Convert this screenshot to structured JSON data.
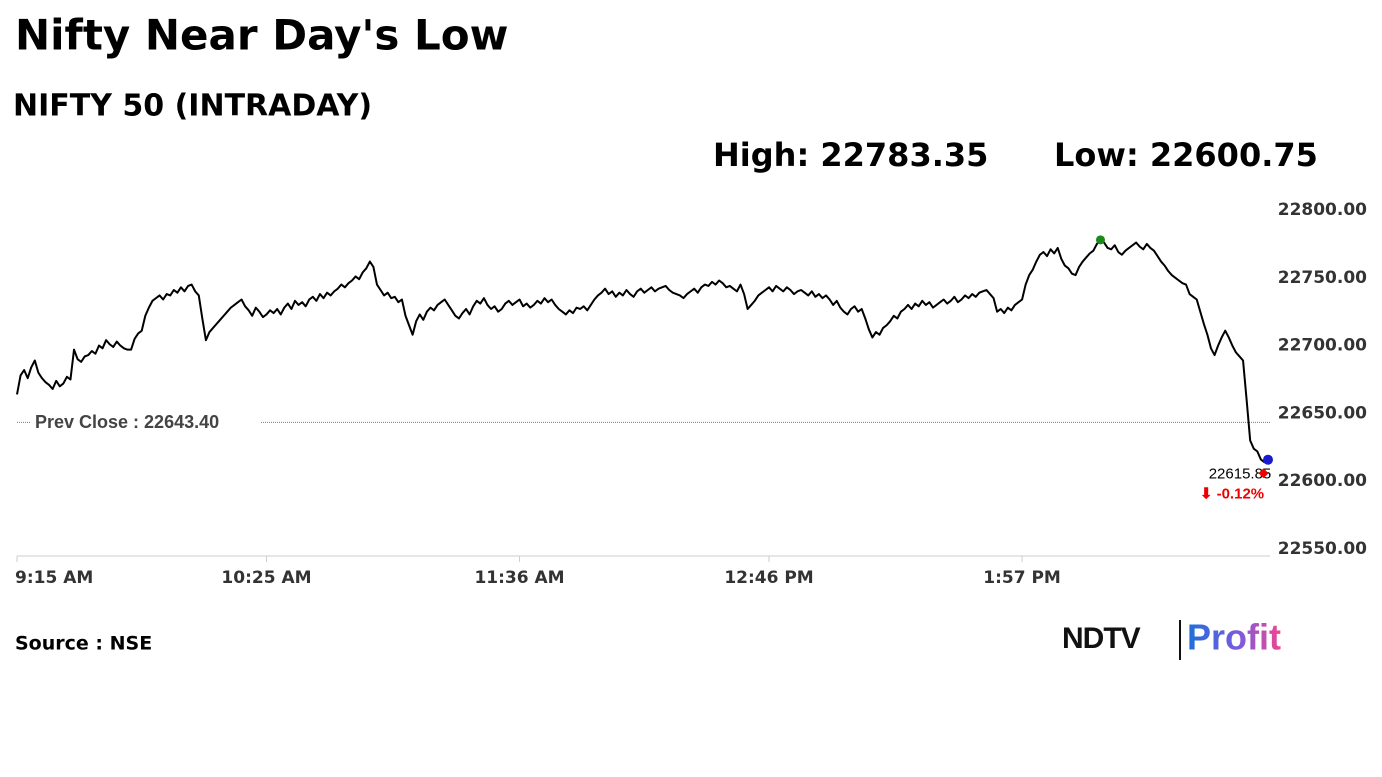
{
  "chart_data": {
    "type": "line",
    "title": "Nifty Near Day's Low",
    "subtitle": "NIFTY 50 (INTRADAY)",
    "high_label": "High: 22783.35",
    "low_label": "Low: 22600.75",
    "prev_close": 22643.4,
    "prev_close_label": "Prev Close : 22643.40",
    "change_label": "⬇ -0.12%",
    "source": "Source : NSE",
    "brand": {
      "ndtv": "NDTV",
      "profit": "Profit"
    },
    "color": "#000000",
    "ylim": [
      22550,
      22800
    ],
    "yticks": [
      {
        "value": 22550,
        "label": "22550.00"
      },
      {
        "value": 22600,
        "label": "22600.00"
      },
      {
        "value": 22650,
        "label": "22650.00"
      },
      {
        "value": 22700,
        "label": "22700.00"
      },
      {
        "value": 22750,
        "label": "22750.00"
      },
      {
        "value": 22800,
        "label": "22800.00"
      }
    ],
    "categories": [
      "9:15 AM",
      null,
      null,
      null,
      null,
      null,
      null,
      null,
      null,
      null,
      null,
      null,
      null,
      null,
      null,
      null,
      null,
      null,
      null,
      null,
      null,
      null,
      null,
      null,
      null,
      null,
      null,
      null,
      null,
      null,
      null,
      null,
      null,
      null,
      null,
      null,
      null,
      null,
      null,
      null,
      null,
      null,
      null,
      null,
      null,
      null,
      null,
      null,
      null,
      null,
      null,
      null,
      null,
      null,
      null,
      null,
      null,
      null,
      null,
      null,
      null,
      null,
      null,
      null,
      null,
      null,
      null,
      null,
      null,
      null,
      "10:25 AM",
      null,
      null,
      null,
      null,
      null,
      null,
      null,
      null,
      null,
      null,
      null,
      null,
      null,
      null,
      null,
      null,
      null,
      null,
      null,
      null,
      null,
      null,
      null,
      null,
      null,
      null,
      null,
      null,
      null,
      null,
      null,
      null,
      null,
      null,
      null,
      null,
      null,
      null,
      null,
      null,
      null,
      null,
      null,
      null,
      null,
      null,
      null,
      null,
      null,
      null,
      null,
      null,
      null,
      null,
      null,
      null,
      null,
      null,
      null,
      null,
      null,
      null,
      null,
      null,
      null,
      null,
      null,
      null,
      null,
      null,
      "11:36 AM",
      null,
      null,
      null,
      null,
      null,
      null,
      null,
      null,
      null,
      null,
      null,
      null,
      null,
      null,
      null,
      null,
      null,
      null,
      null,
      null,
      null,
      null,
      null,
      null,
      null,
      null,
      null,
      null,
      null,
      null,
      null,
      null,
      null,
      null,
      null,
      null,
      null,
      null,
      null,
      null,
      null,
      null,
      null,
      null,
      null,
      null,
      null,
      null,
      null,
      null,
      null,
      null,
      null,
      null,
      null,
      null,
      null,
      null,
      null,
      null,
      null,
      null,
      null,
      null,
      null,
      null,
      null,
      null,
      null,
      "12:46 PM",
      null,
      null,
      null,
      null,
      null,
      null,
      null,
      null,
      null,
      null,
      null,
      null,
      null,
      null,
      null,
      null,
      null,
      null,
      null,
      null,
      null,
      null,
      null,
      null,
      null,
      null,
      null,
      null,
      null,
      null,
      null,
      null,
      null,
      null,
      null,
      null,
      null,
      null,
      null,
      null,
      null,
      null,
      null,
      null,
      null,
      null,
      null,
      null,
      null,
      null,
      null,
      null,
      null,
      null,
      null,
      null,
      null,
      null,
      null,
      null,
      null,
      null,
      null,
      null,
      null,
      null,
      null,
      null,
      null,
      null,
      "1:57 PM",
      null,
      null,
      null,
      null,
      null,
      null,
      null,
      null,
      null,
      null,
      null,
      null,
      null,
      null,
      null,
      null,
      null,
      null,
      null,
      null,
      null,
      null,
      null,
      null,
      null,
      null,
      null,
      null,
      null,
      null,
      null,
      null,
      null,
      null,
      null,
      null,
      null,
      null,
      null,
      null,
      null,
      null,
      null,
      null,
      null,
      null,
      null,
      null,
      null,
      null,
      null,
      null,
      null,
      null,
      null,
      null,
      null,
      null,
      null,
      null,
      null,
      null,
      null,
      null,
      null,
      null,
      null,
      null,
      null
    ],
    "values": [
      22664,
      22678,
      22682,
      22676,
      22684,
      22689,
      22680,
      22676,
      22673,
      22671,
      22668,
      22674,
      22670,
      22672,
      22677,
      22675,
      22697,
      22690,
      22688,
      22692,
      22693,
      22696,
      22694,
      22700,
      22698,
      22704,
      22701,
      22699,
      22703,
      22700,
      22698,
      22697,
      22697,
      22705,
      22709,
      22711,
      22722,
      22728,
      22733,
      22735,
      22737,
      22734,
      22738,
      22737,
      22741,
      22739,
      22743,
      22740,
      22744,
      22745,
      22740,
      22737,
      22720,
      22704,
      22710,
      22713,
      22716,
      22719,
      22722,
      22725,
      22728,
      22730,
      22732,
      22734,
      22729,
      22726,
      22722,
      22728,
      22725,
      22721,
      22723,
      22726,
      22724,
      22727,
      22723,
      22728,
      22731,
      22727,
      22733,
      22730,
      22732,
      22729,
      22734,
      22736,
      22733,
      22738,
      22735,
      22739,
      22737,
      22740,
      22742,
      22745,
      22743,
      22746,
      22748,
      22751,
      22749,
      22754,
      22757,
      22762,
      22758,
      22745,
      22741,
      22737,
      22739,
      22735,
      22736,
      22732,
      22734,
      22722,
      22715,
      22708,
      22718,
      22723,
      22719,
      22725,
      22728,
      22726,
      22730,
      22732,
      22734,
      22730,
      22726,
      22722,
      22720,
      22724,
      22727,
      22723,
      22729,
      22733,
      22731,
      22735,
      22730,
      22727,
      22729,
      22725,
      22727,
      22731,
      22733,
      22730,
      22732,
      22734,
      22729,
      22731,
      22728,
      22730,
      22733,
      22731,
      22735,
      22732,
      22734,
      22730,
      22727,
      22725,
      22723,
      22726,
      22724,
      22728,
      22727,
      22729,
      22726,
      22730,
      22734,
      22737,
      22739,
      22742,
      22738,
      22740,
      22736,
      22739,
      22737,
      22741,
      22738,
      22736,
      22740,
      22742,
      22739,
      22741,
      22743,
      22740,
      22742,
      22743,
      22744,
      22741,
      22739,
      22738,
      22737,
      22735,
      22738,
      22740,
      22742,
      22739,
      22743,
      22745,
      22744,
      22747,
      22745,
      22748,
      22746,
      22743,
      22744,
      22742,
      22740,
      22745,
      22738,
      22727,
      22730,
      22733,
      22737,
      22739,
      22741,
      22743,
      22740,
      22744,
      22742,
      22740,
      22743,
      22741,
      22738,
      22740,
      22741,
      22739,
      22737,
      22740,
      22736,
      22738,
      22735,
      22737,
      22734,
      22730,
      22733,
      22728,
      22725,
      22723,
      22727,
      22729,
      22725,
      22727,
      22720,
      22712,
      22706,
      22710,
      22708,
      22713,
      22715,
      22718,
      22722,
      22720,
      22725,
      22727,
      22730,
      22727,
      22731,
      22729,
      22733,
      22730,
      22732,
      22728,
      22730,
      22732,
      22734,
      22731,
      22733,
      22736,
      22732,
      22734,
      22737,
      22735,
      22738,
      22736,
      22739,
      22740,
      22741,
      22738,
      22735,
      22725,
      22727,
      22724,
      22728,
      22726,
      22730,
      22732,
      22734,
      22745,
      22752,
      22756,
      22762,
      22767,
      22769,
      22766,
      22771,
      22768,
      22772,
      22764,
      22759,
      22757,
      22753,
      22752,
      22758,
      22762,
      22765,
      22768,
      22770,
      22775,
      22778,
      22776,
      22772,
      22771,
      22774,
      22769,
      22767,
      22770,
      22772,
      22774,
      22776,
      22773,
      22771,
      22775,
      22772,
      22770,
      22766,
      22762,
      22759,
      22755,
      22752,
      22750,
      22748,
      22746,
      22745,
      22738,
      22736,
      22734,
      22725,
      22716,
      22708,
      22698,
      22693,
      22700,
      22706,
      22711,
      22706,
      22700,
      22695,
      22692,
      22689,
      22660,
      22630,
      22624,
      22622,
      22616,
      22614,
      22615.85
    ]
  }
}
